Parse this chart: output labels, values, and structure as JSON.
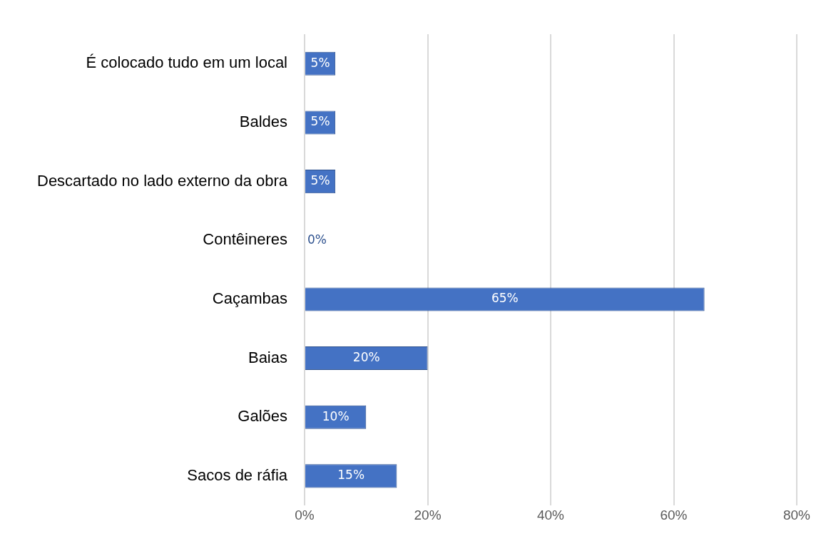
{
  "chart_data": {
    "type": "bar",
    "orientation": "horizontal",
    "categories": [
      "É colocado tudo em um local",
      "Baldes",
      "Descartado no lado externo da obra",
      "Contêineres",
      "Caçambas",
      "Baias",
      "Galões",
      "Sacos de ráfia"
    ],
    "values": [
      5,
      5,
      5,
      0,
      65,
      20,
      10,
      15
    ],
    "value_labels": [
      "5%",
      "5%",
      "5%",
      "0%",
      "65%",
      "20%",
      "10%",
      "15%"
    ],
    "color": "#4472c4",
    "xlim": [
      0,
      80
    ],
    "xticks": [
      {
        "value": 0,
        "label": "0%"
      },
      {
        "value": 20,
        "label": "20%"
      },
      {
        "value": 40,
        "label": "40%"
      },
      {
        "value": 60,
        "label": "60%"
      },
      {
        "value": 80,
        "label": "80%"
      }
    ],
    "grid": "x",
    "legend": false
  }
}
